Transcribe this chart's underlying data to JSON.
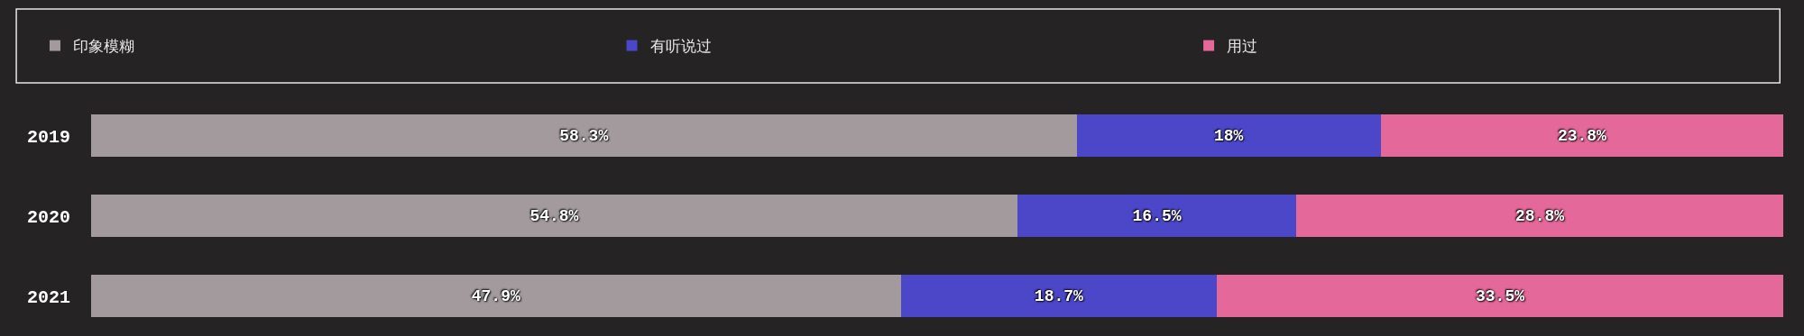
{
  "chart_data": {
    "type": "bar",
    "orientation": "horizontal",
    "stacked": true,
    "categories": [
      "2019",
      "2020",
      "2021"
    ],
    "series": [
      {
        "name": "印象模糊",
        "color": "#a39a9e",
        "values": [
          58.3,
          54.8,
          47.9
        ],
        "value_labels": [
          "58.3%",
          "54.8%",
          "47.9%"
        ]
      },
      {
        "name": "有听说过",
        "color": "#4c47c8",
        "values": [
          18,
          16.5,
          18.7
        ],
        "value_labels": [
          "18%",
          "16.5%",
          "18.7%"
        ]
      },
      {
        "name": "用过",
        "color": "#e5689a",
        "values": [
          23.8,
          28.8,
          33.5
        ],
        "value_labels": [
          "23.8%",
          "28.8%",
          "33.5%"
        ]
      }
    ],
    "xlim": [
      0,
      100.1
    ],
    "tick_labels": "y",
    "legend": "top"
  }
}
